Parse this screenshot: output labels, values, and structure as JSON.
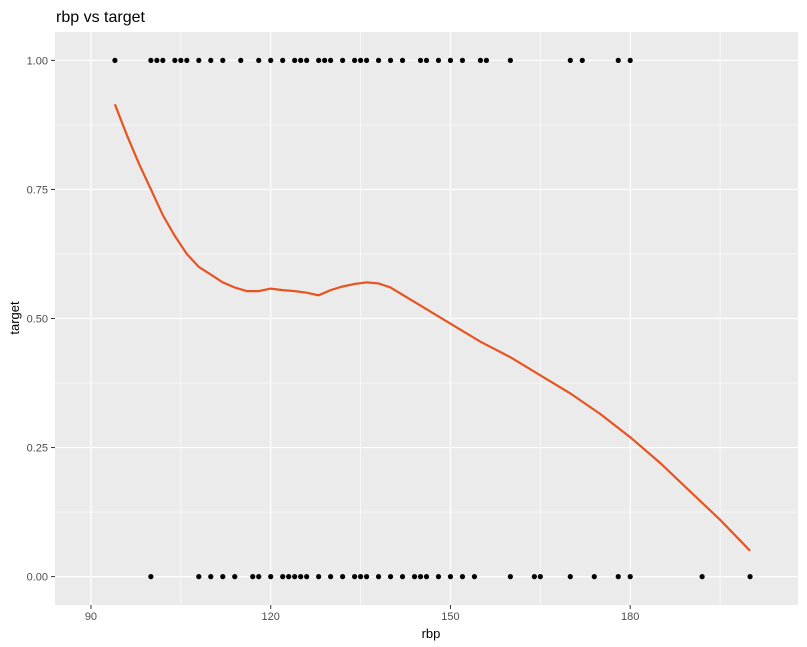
{
  "chart_data": {
    "type": "scatter",
    "title": "rbp vs target",
    "xlabel": "rbp",
    "ylabel": "target",
    "xlim": [
      84,
      208
    ],
    "ylim": [
      -0.055,
      1.055
    ],
    "x_ticks": [
      90,
      120,
      150,
      180
    ],
    "x_tick_labels": [
      "90",
      "120",
      "150",
      "180"
    ],
    "y_ticks": [
      0,
      0.25,
      0.5,
      0.75,
      1
    ],
    "y_tick_labels": [
      "0.00",
      "0.25",
      "0.50",
      "0.75",
      "1.00"
    ],
    "x_minor": [
      105,
      135,
      165,
      195
    ],
    "y_minor": [
      0.125,
      0.375,
      0.625,
      0.875
    ],
    "grid": true,
    "legend": "none",
    "colors": {
      "panel": "#ebebeb",
      "grid": "#ffffff",
      "points": "#000000",
      "smooth": "#e8531f"
    },
    "points": {
      "x": [
        94,
        100,
        101,
        102,
        104,
        105,
        106,
        108,
        110,
        112,
        115,
        118,
        120,
        122,
        124,
        125,
        126,
        128,
        129,
        130,
        132,
        134,
        135,
        136,
        138,
        140,
        142,
        145,
        146,
        148,
        150,
        152,
        155,
        156,
        160,
        170,
        172,
        178,
        180,
        100,
        108,
        110,
        112,
        114,
        117,
        118,
        120,
        122,
        123,
        124,
        125,
        126,
        128,
        130,
        132,
        134,
        135,
        136,
        138,
        140,
        142,
        144,
        145,
        146,
        148,
        150,
        152,
        154,
        160,
        164,
        165,
        170,
        174,
        178,
        180,
        192,
        200
      ],
      "y": [
        1,
        1,
        1,
        1,
        1,
        1,
        1,
        1,
        1,
        1,
        1,
        1,
        1,
        1,
        1,
        1,
        1,
        1,
        1,
        1,
        1,
        1,
        1,
        1,
        1,
        1,
        1,
        1,
        1,
        1,
        1,
        1,
        1,
        1,
        1,
        1,
        1,
        1,
        1,
        0,
        0,
        0,
        0,
        0,
        0,
        0,
        0,
        0,
        0,
        0,
        0,
        0,
        0,
        0,
        0,
        0,
        0,
        0,
        0,
        0,
        0,
        0,
        0,
        0,
        0,
        0,
        0,
        0,
        0,
        0,
        0,
        0,
        0,
        0,
        0,
        0,
        0
      ]
    },
    "smooth": {
      "x": [
        94,
        96,
        98,
        100,
        102,
        104,
        106,
        108,
        110,
        112,
        114,
        116,
        118,
        120,
        122,
        124,
        126,
        128,
        130,
        132,
        134,
        136,
        138,
        140,
        145,
        150,
        155,
        160,
        165,
        170,
        175,
        180,
        185,
        190,
        195,
        200
      ],
      "y": [
        0.915,
        0.855,
        0.8,
        0.75,
        0.7,
        0.66,
        0.625,
        0.6,
        0.585,
        0.57,
        0.56,
        0.553,
        0.553,
        0.558,
        0.555,
        0.553,
        0.55,
        0.545,
        0.555,
        0.562,
        0.567,
        0.57,
        0.568,
        0.56,
        0.525,
        0.49,
        0.455,
        0.425,
        0.39,
        0.355,
        0.315,
        0.27,
        0.22,
        0.165,
        0.11,
        0.05
      ]
    }
  }
}
